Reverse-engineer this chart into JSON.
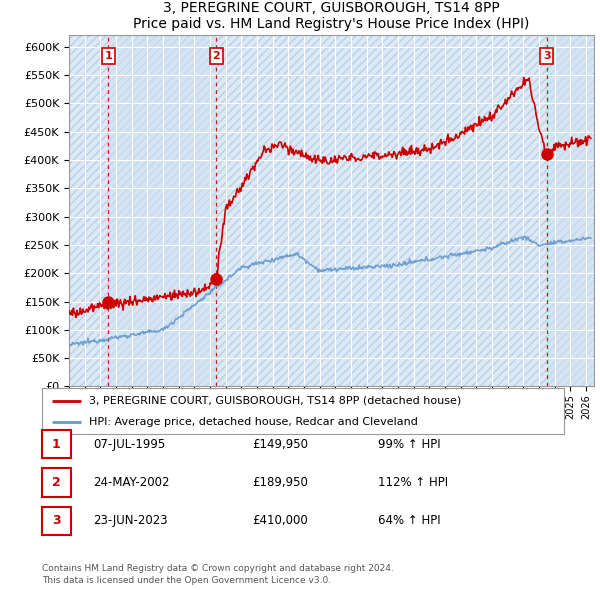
{
  "title": "3, PEREGRINE COURT, GUISBOROUGH, TS14 8PP",
  "subtitle": "Price paid vs. HM Land Registry's House Price Index (HPI)",
  "ylim": [
    0,
    620000
  ],
  "yticks": [
    0,
    50000,
    100000,
    150000,
    200000,
    250000,
    300000,
    350000,
    400000,
    450000,
    500000,
    550000,
    600000
  ],
  "ytick_labels": [
    "£0",
    "£50K",
    "£100K",
    "£150K",
    "£200K",
    "£250K",
    "£300K",
    "£350K",
    "£400K",
    "£450K",
    "£500K",
    "£550K",
    "£600K"
  ],
  "xlim_start": 1993.0,
  "xlim_end": 2026.5,
  "bg_color": "#dce9f5",
  "shade_color": "#c8dcf0",
  "grid_color": "#ffffff",
  "sale1_x": 1995.52,
  "sale1_y": 149950,
  "sale2_x": 2002.39,
  "sale2_y": 189950,
  "sale3_x": 2023.48,
  "sale3_y": 410000,
  "sale_color": "#cc0000",
  "hpi_color": "#6699cc",
  "legend_label_red": "3, PEREGRINE COURT, GUISBOROUGH, TS14 8PP (detached house)",
  "legend_label_blue": "HPI: Average price, detached house, Redcar and Cleveland",
  "table_rows": [
    {
      "num": "1",
      "date": "07-JUL-1995",
      "price": "£149,950",
      "pct": "99% ↑ HPI"
    },
    {
      "num": "2",
      "date": "24-MAY-2002",
      "price": "£189,950",
      "pct": "112% ↑ HPI"
    },
    {
      "num": "3",
      "date": "23-JUN-2023",
      "price": "£410,000",
      "pct": "64% ↑ HPI"
    }
  ],
  "footer": "Contains HM Land Registry data © Crown copyright and database right 2024.\nThis data is licensed under the Open Government Licence v3.0.",
  "vline_color": "#cc0000"
}
